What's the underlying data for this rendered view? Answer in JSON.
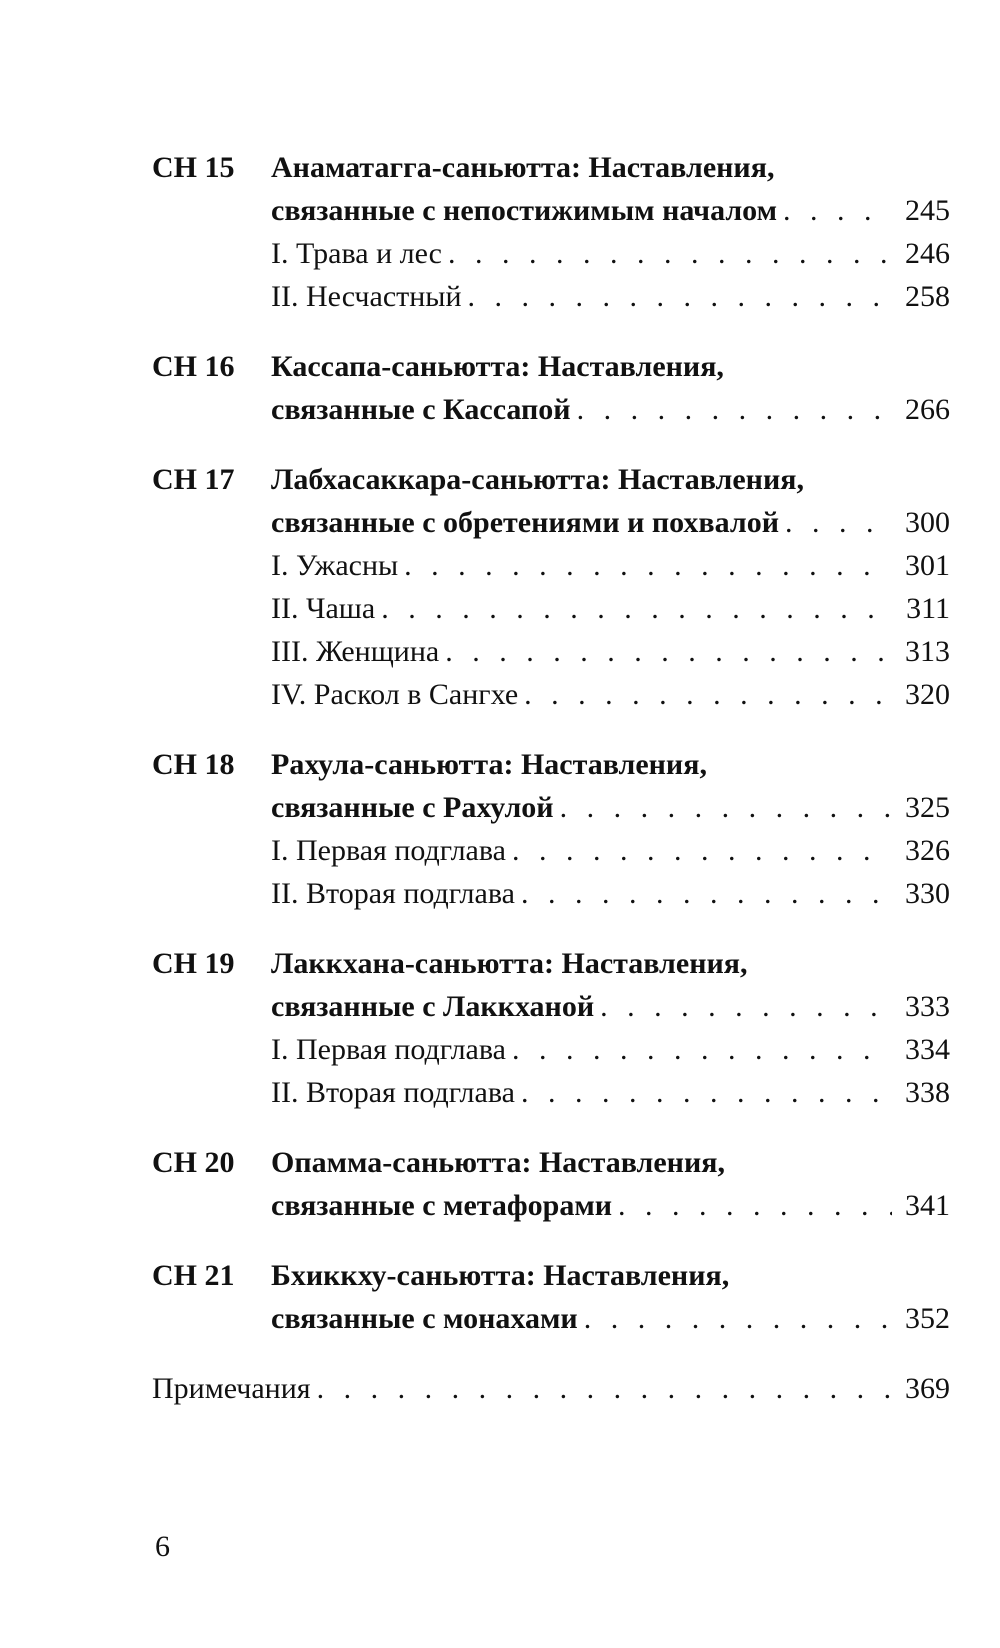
{
  "toc": [
    {
      "code": "СН 15",
      "title": "Анаматагга-саньютта: Наставления,",
      "title2": "связанные с непостижимым началом",
      "page": "245",
      "subs": [
        {
          "title": "I. Трава и лес",
          "page": "246"
        },
        {
          "title": "II. Несчастный",
          "page": "258"
        }
      ]
    },
    {
      "code": "СН 16",
      "title": "Кассапа-саньютта: Наставления,",
      "title2": "связанные с Кассапой",
      "page": "266",
      "subs": []
    },
    {
      "code": "СН 17",
      "title": "Лабхасаккара-саньютта: Наставления,",
      "title2": "связанные с обретениями и похвалой",
      "page": "300",
      "subs": [
        {
          "title": "I. Ужасны",
          "page": "301"
        },
        {
          "title": "II. Чаша",
          "page": "311"
        },
        {
          "title": "III. Женщина",
          "page": "313"
        },
        {
          "title": "IV. Раскол в Сангхе",
          "page": "320"
        }
      ]
    },
    {
      "code": "СН 18",
      "title": "Рахула-саньютта: Наставления,",
      "title2": "связанные с Рахулой",
      "page": "325",
      "subs": [
        {
          "title": "I. Первая подглава",
          "page": "326"
        },
        {
          "title": "II. Вторая подглава",
          "page": "330"
        }
      ]
    },
    {
      "code": "СН 19",
      "title": "Лаккхана-саньютта: Наставления,",
      "title2": "связанные с Лаккханой",
      "page": "333",
      "subs": [
        {
          "title": "I. Первая подглава",
          "page": "334"
        },
        {
          "title": "II. Вторая подглава",
          "page": "338"
        }
      ]
    },
    {
      "code": "СН 20",
      "title": "Опамма-саньютта: Наставления,",
      "title2": "связанные с метафорами",
      "page": "341",
      "subs": []
    },
    {
      "code": "СН 21",
      "title": "Бхиккху-саньютта: Наставления,",
      "title2": "связанные с монахами",
      "page": "352",
      "subs": []
    }
  ],
  "notes": {
    "title": "Примечания",
    "page": "369"
  },
  "page_number": "6"
}
